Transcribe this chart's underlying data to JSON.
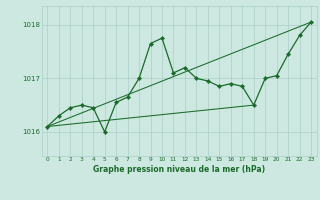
{
  "title": "Graphe pression niveau de la mer (hPa)",
  "background_color": "#cce8e0",
  "grid_color": "#aacfc8",
  "line_color": "#1a6b2a",
  "xlim": [
    -0.5,
    23.5
  ],
  "ylim": [
    1015.55,
    1018.35
  ],
  "yticks": [
    1016,
    1017,
    1018
  ],
  "xticks": [
    0,
    1,
    2,
    3,
    4,
    5,
    6,
    7,
    8,
    9,
    10,
    11,
    12,
    13,
    14,
    15,
    16,
    17,
    18,
    19,
    20,
    21,
    22,
    23
  ],
  "pressure": [
    1016.1,
    1016.3,
    1016.45,
    1016.5,
    1016.45,
    1016.0,
    1016.55,
    1016.65,
    1017.0,
    1017.65,
    1017.75,
    1017.1,
    1017.2,
    1017.0,
    1016.95,
    1016.85,
    1016.9,
    1016.85,
    1016.5,
    1017.0,
    1017.05,
    1017.45,
    1017.8,
    1018.05
  ],
  "line2_x": [
    0,
    18
  ],
  "line2_y": [
    1016.1,
    1016.5
  ],
  "line3_x": [
    0,
    23
  ],
  "line3_y": [
    1016.1,
    1018.05
  ]
}
